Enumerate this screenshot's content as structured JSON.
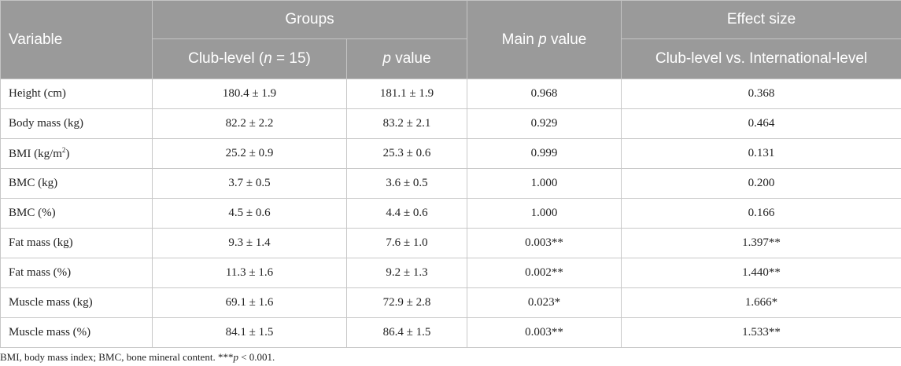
{
  "header": {
    "variable": "Variable",
    "groups": "Groups",
    "main_p_prefix": "Main ",
    "main_p_italic": "p",
    "main_p_suffix": " value",
    "effect_size": "Effect size",
    "club_level_prefix": "Club-level (",
    "club_level_n": "n",
    "club_level_suffix": " = 15)",
    "p_value_italic": "p",
    "p_value_suffix": " value",
    "comparison": "Club-level vs. International-level"
  },
  "rows": [
    {
      "variable": "Height (cm)",
      "club": "180.4 ± 1.9",
      "p": "181.1 ± 1.9",
      "main_p": "0.968",
      "effect": "0.368"
    },
    {
      "variable": "Body mass (kg)",
      "club": "82.2 ± 2.2",
      "p": "83.2 ± 2.1",
      "main_p": "0.929",
      "effect": "0.464"
    },
    {
      "variable": "BMI (kg/m",
      "variable_sup": "2",
      "variable_after": ")",
      "club": "25.2 ± 0.9",
      "p": "25.3 ± 0.6",
      "main_p": "0.999",
      "effect": "0.131"
    },
    {
      "variable": "BMC (kg)",
      "club": "3.7 ± 0.5",
      "p": "3.6 ± 0.5",
      "main_p": "1.000",
      "effect": "0.200"
    },
    {
      "variable": "BMC (%)",
      "club": "4.5 ± 0.6",
      "p": "4.4 ± 0.6",
      "main_p": "1.000",
      "effect": "0.166"
    },
    {
      "variable": "Fat mass (kg)",
      "club": "9.3 ± 1.4",
      "p": "7.6 ± 1.0",
      "main_p": "0.003**",
      "effect": "1.397**"
    },
    {
      "variable": "Fat mass (%)",
      "club": "11.3 ± 1.6",
      "p": "9.2 ± 1.3",
      "main_p": "0.002**",
      "effect": "1.440**"
    },
    {
      "variable": "Muscle mass (kg)",
      "club": "69.1 ± 1.6",
      "p": "72.9 ± 2.8",
      "main_p": "0.023*",
      "effect": "1.666*"
    },
    {
      "variable": "Muscle mass (%)",
      "club": "84.1 ± 1.5",
      "p": "86.4 ± 1.5",
      "main_p": "0.003**",
      "effect": "1.533**"
    }
  ],
  "footnote": {
    "text": "BMI, body mass index; BMC, bone mineral content. ***",
    "italic": "p",
    "suffix": " < 0.001."
  }
}
